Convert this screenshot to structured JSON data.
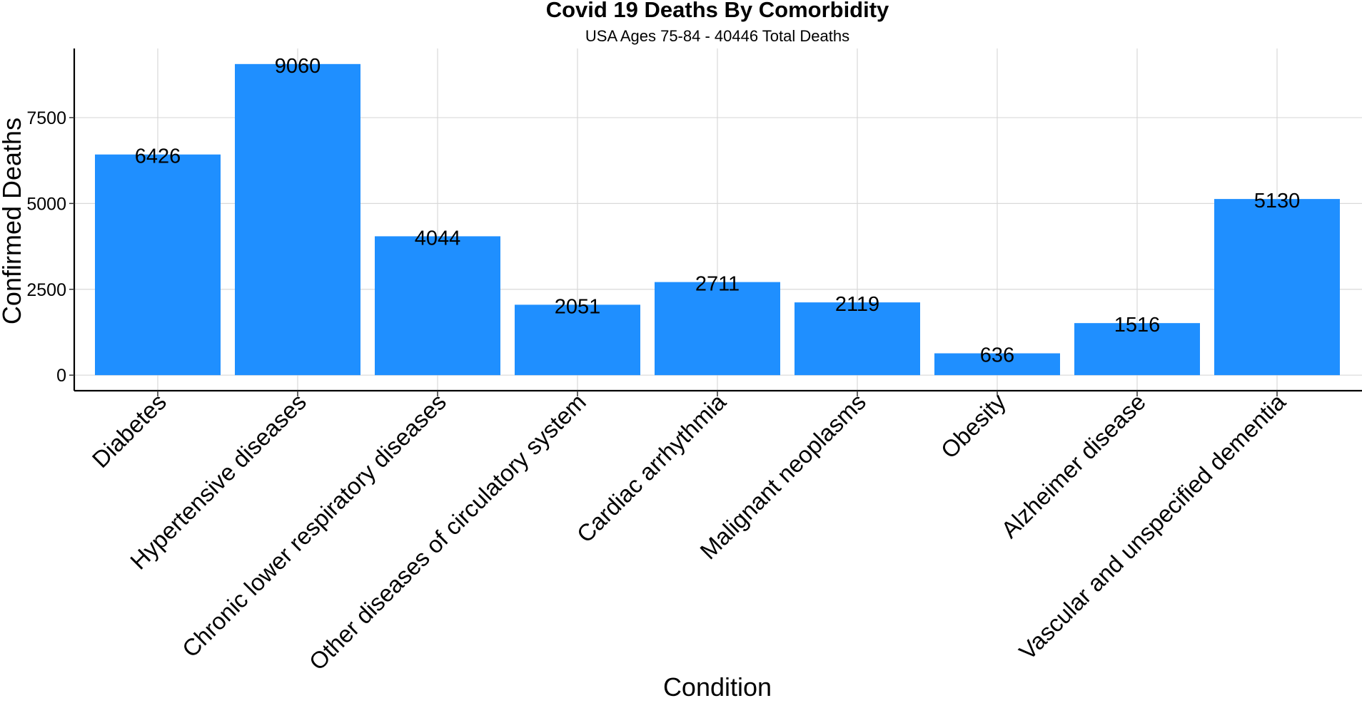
{
  "chart_data": {
    "type": "bar",
    "title": "Covid 19 Deaths By Comorbidity",
    "subtitle": "USA Ages 75-84 - 40446 Total Deaths",
    "xlabel": "Condition",
    "ylabel": "Confirmed Deaths",
    "categories": [
      "Diabetes",
      "Hypertensive diseases",
      "Chronic lower respiratory diseases",
      "Other diseases of circulatory system",
      "Cardiac arrhythmia",
      "Malignant neoplasms",
      "Obesity",
      "Alzheimer disease",
      "Vascular and unspecified dementia"
    ],
    "values": [
      6426,
      9060,
      4044,
      2051,
      2711,
      2119,
      636,
      1516,
      5130
    ],
    "data_labels": [
      "6426",
      "9060",
      "4044",
      "2051",
      "2711",
      "2119",
      "636",
      "1516",
      "5130"
    ],
    "yticks": [
      0,
      2500,
      5000,
      7500
    ],
    "ytick_labels": [
      "0",
      "2500",
      "5000",
      "7500"
    ],
    "ylim": [
      -453,
      9513
    ],
    "grid": true,
    "bar_color": "#1f8fff"
  }
}
